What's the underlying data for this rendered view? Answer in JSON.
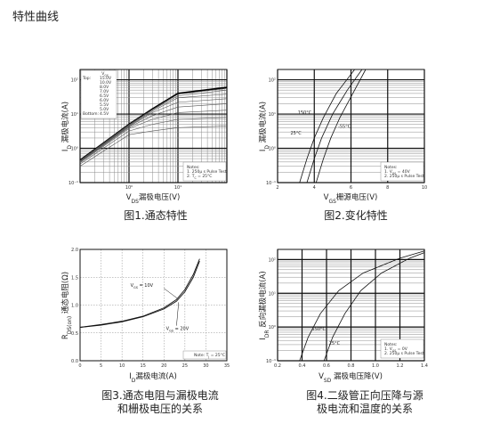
{
  "page_title": "特性曲线",
  "chart_data": [
    {
      "id": "fig1",
      "type": "line",
      "caption": "图1.通态特性",
      "xlabel_sym": "V",
      "xlabel_sub": "DS",
      "xlabel_rest": "漏极电压(V)",
      "ylabel": "I",
      "ylabel_sub": "D",
      "ylabel_rest": "漏极电流(A)",
      "xscale": "log",
      "yscale": "log",
      "xlim": [
        0.1,
        100
      ],
      "ylim": [
        0.1,
        200
      ],
      "xticks": [
        "10⁰",
        "10¹"
      ],
      "yticks": [
        "10²",
        "10¹",
        "10⁰",
        "10⁻¹"
      ],
      "legend_top_label": "Top:",
      "legend_bottom_label": "Bottom:",
      "legend_header": "V",
      "legend_header_sub": "GS",
      "legend_entries": [
        "15.0V",
        "10.0V",
        "8.0V",
        "7.0V",
        "6.5V",
        "6.0V",
        "5.5V",
        "5.0V",
        "4.5V"
      ],
      "notes": [
        "Notes:",
        "1. 250μ s Pulse Test",
        "2. T",
        "= 25°C"
      ],
      "series": [
        {
          "name": "15.0V",
          "x": [
            0.1,
            1,
            3,
            10,
            100
          ],
          "y": [
            0.45,
            5,
            14,
            40,
            60
          ]
        },
        {
          "name": "10.0V",
          "x": [
            0.1,
            1,
            3,
            10,
            100
          ],
          "y": [
            0.44,
            4.9,
            13.5,
            38,
            56
          ]
        },
        {
          "name": "8.0V",
          "x": [
            0.1,
            1,
            3,
            10,
            100
          ],
          "y": [
            0.43,
            4.7,
            13,
            34,
            50
          ]
        },
        {
          "name": "7.0V",
          "x": [
            0.1,
            1,
            3,
            10,
            100
          ],
          "y": [
            0.42,
            4.5,
            12,
            30,
            38
          ]
        },
        {
          "name": "6.5V",
          "x": [
            0.1,
            1,
            3,
            10,
            100
          ],
          "y": [
            0.41,
            4.3,
            11,
            22,
            28
          ]
        },
        {
          "name": "6.0V",
          "x": [
            0.1,
            1,
            3,
            10,
            100
          ],
          "y": [
            0.4,
            4.1,
            9,
            16,
            20
          ]
        },
        {
          "name": "5.5V",
          "x": [
            0.1,
            1,
            3,
            10,
            100
          ],
          "y": [
            0.38,
            3.8,
            7,
            11,
            13
          ]
        },
        {
          "name": "5.0V",
          "x": [
            0.1,
            1,
            3,
            10,
            100
          ],
          "y": [
            0.35,
            3.2,
            5,
            7,
            8
          ]
        },
        {
          "name": "4.5V",
          "x": [
            0.1,
            1,
            3,
            10,
            100
          ],
          "y": [
            0.3,
            2.5,
            3.2,
            4,
            4.5
          ]
        }
      ]
    },
    {
      "id": "fig2",
      "type": "line",
      "caption": "图2.变化特性",
      "xlabel_sym": "V",
      "xlabel_sub": "GS",
      "xlabel_rest": "栅源电压(V)",
      "ylabel": "I",
      "ylabel_sub": "D",
      "ylabel_rest": "漏极电流(A)",
      "xscale": "linear",
      "yscale": "log",
      "xlim": [
        2,
        10
      ],
      "ylim": [
        0.1,
        200
      ],
      "xticks": [
        "2",
        "4",
        "6",
        "8",
        "10"
      ],
      "yticks": [
        "10²",
        "10¹",
        "10⁰",
        "10⁻¹"
      ],
      "notes": [
        "Notes:",
        "1. V",
        "= 40V",
        "2. 250μ s Pulse Test"
      ],
      "series": [
        {
          "name": "150°C",
          "x": [
            3.2,
            3.6,
            4,
            4.5,
            5.2,
            6.2
          ],
          "y": [
            0.1,
            0.5,
            2,
            8,
            40,
            200
          ]
        },
        {
          "name": "25°C",
          "x": [
            3.6,
            4,
            4.4,
            5,
            5.8,
            6.6
          ],
          "y": [
            0.1,
            0.5,
            2,
            10,
            50,
            200
          ]
        },
        {
          "name": "-55°C",
          "x": [
            4.1,
            4.5,
            4.9,
            5.4,
            6.1,
            6.8
          ],
          "y": [
            0.1,
            0.5,
            2,
            8,
            40,
            200
          ]
        }
      ],
      "annotations": [
        "150°C",
        "25°C",
        "-55°C"
      ]
    },
    {
      "id": "fig3",
      "type": "line",
      "caption_lines": [
        "图3.通态电阻与漏极电流",
        "和栅极电压的关系"
      ],
      "xlabel_sym": "I",
      "xlabel_sub": "D",
      "xlabel_rest": "漏极电流(A)",
      "ylabel": "R",
      "ylabel_sub": "DS(on)",
      "ylabel_rest": "通态电阻(Ω)",
      "xscale": "linear",
      "yscale": "linear",
      "xlim": [
        0,
        35
      ],
      "ylim": [
        0,
        2.0
      ],
      "xticks": [
        "0",
        "5",
        "10",
        "15",
        "20",
        "25",
        "30",
        "35"
      ],
      "yticks": [
        "0.0",
        "0.5",
        "1.0",
        "1.5",
        "2.0"
      ],
      "notes": [
        "Note: T",
        "= 25°C"
      ],
      "series": [
        {
          "name": "V_GS = 10V",
          "x": [
            0,
            5,
            10,
            15,
            20,
            23,
            25,
            27,
            28.5
          ],
          "y": [
            0.6,
            0.65,
            0.71,
            0.8,
            0.95,
            1.1,
            1.28,
            1.55,
            1.83
          ]
        },
        {
          "name": "V_GS = 20V",
          "x": [
            0,
            5,
            10,
            15,
            20,
            23,
            25,
            27,
            28.5
          ],
          "y": [
            0.6,
            0.64,
            0.7,
            0.79,
            0.93,
            1.07,
            1.24,
            1.5,
            1.79
          ]
        }
      ],
      "annotations": [
        {
          "pre": "V",
          "sub": "GS",
          "post": " = 10V"
        },
        {
          "pre": "V",
          "sub": "GS",
          "post": " = 20V"
        }
      ]
    },
    {
      "id": "fig4",
      "type": "line",
      "caption_lines": [
        "图4.二级管正向压降与源",
        "极电流和温度的关系"
      ],
      "xlabel_sym": "V",
      "xlabel_sub": "SD",
      "xlabel_rest": "漏极电压降(V)",
      "ylabel": "I",
      "ylabel_sub": "DR",
      "ylabel_rest": "反向漏极电流(A)",
      "xscale": "linear",
      "yscale": "log",
      "xlim": [
        0.2,
        1.4
      ],
      "ylim": [
        0.1,
        200
      ],
      "xticks": [
        "0.2",
        "0.4",
        "0.6",
        "0.8",
        "1.0",
        "1.2",
        "1.4"
      ],
      "yticks": [
        "10²",
        "10¹",
        "10⁰",
        "10⁻¹"
      ],
      "notes": [
        "Notes:",
        "1. V",
        "= 0V",
        "2. 250μ s Pulse Test"
      ],
      "series": [
        {
          "name": "150°C",
          "x": [
            0.38,
            0.45,
            0.55,
            0.7,
            0.9,
            1.2,
            1.4
          ],
          "y": [
            0.1,
            0.5,
            2.5,
            12,
            40,
            110,
            180
          ]
        },
        {
          "name": "25°C",
          "x": [
            0.58,
            0.65,
            0.75,
            0.88,
            1.05,
            1.28,
            1.4
          ],
          "y": [
            0.1,
            0.5,
            2.5,
            12,
            40,
            110,
            160
          ]
        }
      ],
      "annotations": [
        "150°C",
        "25°C"
      ]
    }
  ]
}
